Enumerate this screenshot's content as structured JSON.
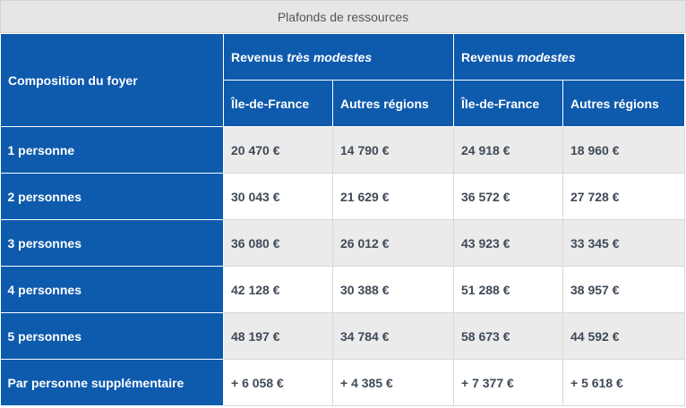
{
  "caption": "Plafonds de ressources",
  "header": {
    "row_label": "Composition du foyer",
    "group1_prefix": "Revenus ",
    "group1_emph": "très modestes",
    "group2_prefix": "Revenus ",
    "group2_emph": "modestes",
    "sub": [
      "Île-de-France",
      "Autres régions",
      "Île-de-France",
      "Autres régions"
    ]
  },
  "rows": [
    {
      "label": "1 personne",
      "values": [
        "20 470 €",
        "14 790 €",
        "24 918 €",
        "18 960 €"
      ]
    },
    {
      "label": "2 personnes",
      "values": [
        "30 043 €",
        "21 629 €",
        "36 572 €",
        "27 728 €"
      ]
    },
    {
      "label": "3 personnes",
      "values": [
        "36 080 €",
        "26 012 €",
        "43 923 €",
        "33 345 €"
      ]
    },
    {
      "label": "4 personnes",
      "values": [
        "42 128 €",
        "30 388 €",
        "51 288 €",
        "38 957 €"
      ]
    },
    {
      "label": "5 personnes",
      "values": [
        "48 197 €",
        "34 784 €",
        "58 673 €",
        "44 592 €"
      ]
    },
    {
      "label": "Par personne supplémentaire",
      "values": [
        "+ 6 058 €",
        "+ 4 385 €",
        "+ 7 377 €",
        "+ 5 618 €"
      ]
    }
  ],
  "colors": {
    "header_blue": "#0e5aad",
    "stripe": "#ebebeb",
    "value_text": "#3f4a57"
  }
}
